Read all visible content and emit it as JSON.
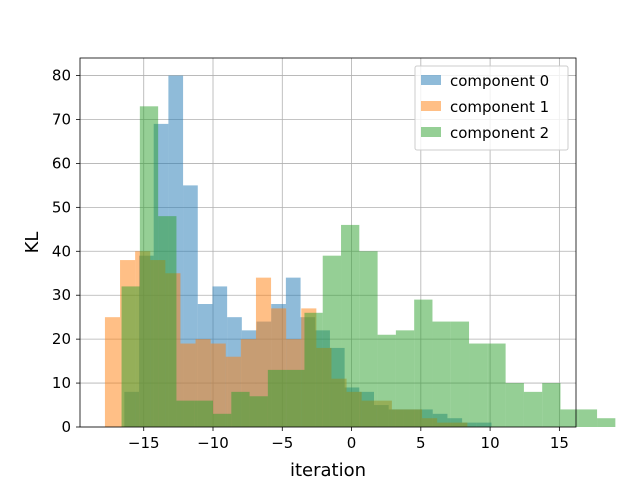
{
  "chart_data": {
    "type": "histogram",
    "xlabel": "iteration",
    "ylabel": "KL",
    "xlim": [
      -19.6,
      16.2
    ],
    "ylim": [
      0,
      84
    ],
    "xticks": [
      -15,
      -10,
      -5,
      0,
      5,
      10,
      15
    ],
    "xtick_labels": [
      "−15",
      "−10",
      "−5",
      "0",
      "5",
      "10",
      "15"
    ],
    "yticks": [
      0,
      10,
      20,
      30,
      40,
      50,
      60,
      70,
      80
    ],
    "ytick_labels": [
      "0",
      "10",
      "20",
      "30",
      "40",
      "50",
      "60",
      "70",
      "80"
    ],
    "grid": true,
    "legend": "top-right",
    "alpha": 0.5,
    "series": [
      {
        "name": "component 0",
        "color": "#1f77b4",
        "bin_start": -16.4,
        "bin_width": 1.06,
        "counts": [
          8,
          39,
          69,
          80,
          55,
          28,
          32,
          25,
          22,
          24,
          28,
          34,
          25,
          22,
          18,
          9,
          8,
          5,
          4,
          4,
          4,
          3,
          2,
          1,
          1
        ]
      },
      {
        "name": "component 1",
        "color": "#ff7f0e",
        "bin_start": -17.8,
        "bin_width": 1.09,
        "counts": [
          25,
          38,
          40,
          38,
          35,
          19,
          20,
          19,
          16,
          20,
          34,
          27,
          20,
          27,
          18,
          11,
          8,
          6,
          6,
          4,
          4,
          2,
          1,
          1
        ]
      },
      {
        "name": "component 2",
        "color": "#2ca02c",
        "bin_start": -16.6,
        "bin_width": 1.32,
        "counts": [
          32,
          73,
          48,
          6,
          6,
          3,
          8,
          7,
          13,
          13,
          26,
          39,
          46,
          40,
          21,
          22,
          29,
          24,
          24,
          19,
          19,
          10,
          8,
          10,
          4,
          4,
          2
        ]
      }
    ]
  }
}
